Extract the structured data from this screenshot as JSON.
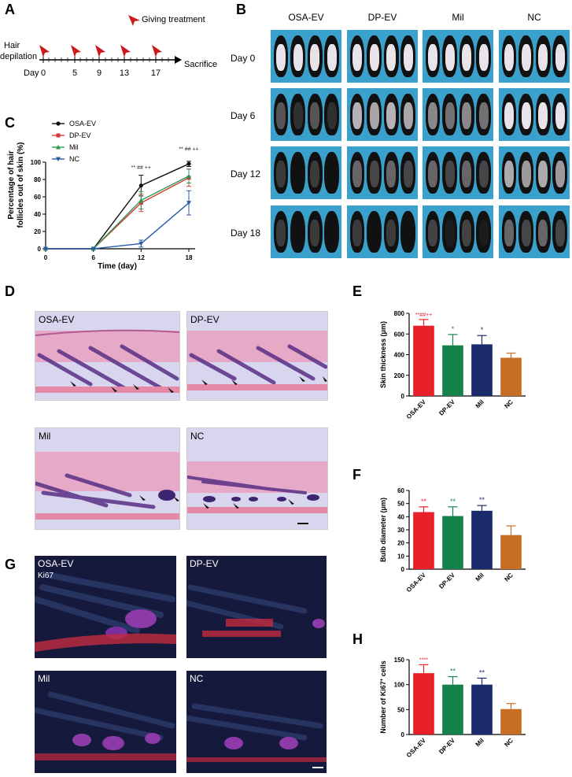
{
  "panels": {
    "A": "A",
    "B": "B",
    "C": "C",
    "D": "D",
    "E": "E",
    "F": "F",
    "G": "G",
    "H": "H"
  },
  "panelA": {
    "legend": "Giving treatment",
    "left_label_1": "Hair",
    "left_label_2": "depilation",
    "day_label": "Day",
    "days": [
      "0",
      "5",
      "9",
      "13",
      "17"
    ],
    "end_label": "Sacrifice",
    "colors": {
      "arrow": "#cc1a1a"
    }
  },
  "panelB": {
    "columns": [
      "OSA-EV",
      "DP-EV",
      "Mil",
      "NC"
    ],
    "rows": [
      "Day 0",
      "Day 6",
      "Day 12",
      "Day 18"
    ],
    "colors": {
      "background": "#3aa0cc",
      "fur": "#111111",
      "skin": "#e9e4ea"
    }
  },
  "panelD": {
    "labels": [
      "OSA-EV",
      "DP-EV",
      "Mil",
      "NC"
    ]
  },
  "panelG": {
    "labels": [
      "OSA-EV",
      "DP-EV",
      "Mil",
      "NC"
    ],
    "stain": "Ki67"
  },
  "chart_data": [
    {
      "id": "C",
      "type": "line",
      "x": [
        0,
        6,
        12,
        18
      ],
      "xticks": [
        "0",
        "6",
        "12",
        "18"
      ],
      "xlabel": "Time (day)",
      "ylabel": "Percentage of hair follicles out of skin (%)",
      "ylabel_lines": [
        "Percentage of hair",
        "follicles out of skin (%)"
      ],
      "ylim": [
        0,
        100
      ],
      "yticks": [
        0,
        20,
        40,
        60,
        80,
        100
      ],
      "legend": "top-left",
      "series": [
        {
          "name": "OSA-EV",
          "color": "#111111",
          "values": [
            0,
            0,
            73,
            98
          ],
          "err": [
            0,
            0,
            12,
            3
          ]
        },
        {
          "name": "DP-EV",
          "color": "#d63a3a",
          "values": [
            0,
            0,
            53,
            82
          ],
          "err": [
            0,
            0,
            10,
            10
          ]
        },
        {
          "name": "Mil",
          "color": "#2a9a52",
          "values": [
            0,
            0,
            56,
            84
          ],
          "err": [
            0,
            0,
            10,
            8
          ]
        },
        {
          "name": "NC",
          "color": "#2a5aa8",
          "values": [
            0,
            0,
            6,
            53
          ],
          "err": [
            0,
            0,
            4,
            14
          ]
        }
      ],
      "annotations": [
        {
          "x": 12,
          "y": 92,
          "text": "** ## ++",
          "color": "#222222"
        },
        {
          "x": 18,
          "y": 113,
          "text": "** ## ++",
          "color": "#222222"
        }
      ]
    },
    {
      "id": "E",
      "type": "bar",
      "categories": [
        "OSA-EV",
        "DP-EV",
        "Mil",
        "NC"
      ],
      "values": [
        680,
        490,
        500,
        370
      ],
      "err": [
        60,
        105,
        85,
        45
      ],
      "colors": [
        "#e8202a",
        "#13834a",
        "#1a2a6a",
        "#c86e24"
      ],
      "ylabel": "Skin thickness (μm)",
      "ylim": [
        0,
        800
      ],
      "yticks": [
        0,
        200,
        400,
        600,
        800
      ],
      "annotations": [
        "**##++",
        "*",
        "*",
        ""
      ],
      "annotation_colors": [
        "#e8202a",
        "#13834a",
        "#1a2a6a",
        "#000000"
      ]
    },
    {
      "id": "F",
      "type": "bar",
      "categories": [
        "OSA-EV",
        "DP-EV",
        "Mil",
        "NC"
      ],
      "values": [
        43.5,
        40.5,
        44.5,
        26
      ],
      "err": [
        4,
        7,
        4,
        7
      ],
      "colors": [
        "#e8202a",
        "#13834a",
        "#1a2a6a",
        "#c86e24"
      ],
      "ylabel": "Bulb diameter (μm)",
      "ylim": [
        0,
        60
      ],
      "yticks": [
        0,
        10,
        20,
        30,
        40,
        50,
        60
      ],
      "annotations": [
        "**",
        "**",
        "**",
        ""
      ],
      "annotation_colors": [
        "#e8202a",
        "#13834a",
        "#1a2a6a",
        "#000000"
      ]
    },
    {
      "id": "H",
      "type": "bar",
      "categories": [
        "OSA-EV",
        "DP-EV",
        "Mil",
        "NC"
      ],
      "values": [
        123,
        100,
        100,
        51
      ],
      "err": [
        17,
        16,
        13,
        11
      ],
      "colors": [
        "#e8202a",
        "#13834a",
        "#1a2a6a",
        "#c86e24"
      ],
      "ylabel": "Number of Ki67+ cells",
      "ylabel_main": "Number of Ki67",
      "ylabel_sup": "+",
      "ylabel_end": " cells",
      "ylim": [
        0,
        150
      ],
      "yticks": [
        0,
        50,
        100,
        150
      ],
      "annotations": [
        "****",
        "**",
        "**",
        ""
      ],
      "annotation_colors": [
        "#e8202a",
        "#13834a",
        "#1a2a6a",
        "#000000"
      ]
    }
  ]
}
